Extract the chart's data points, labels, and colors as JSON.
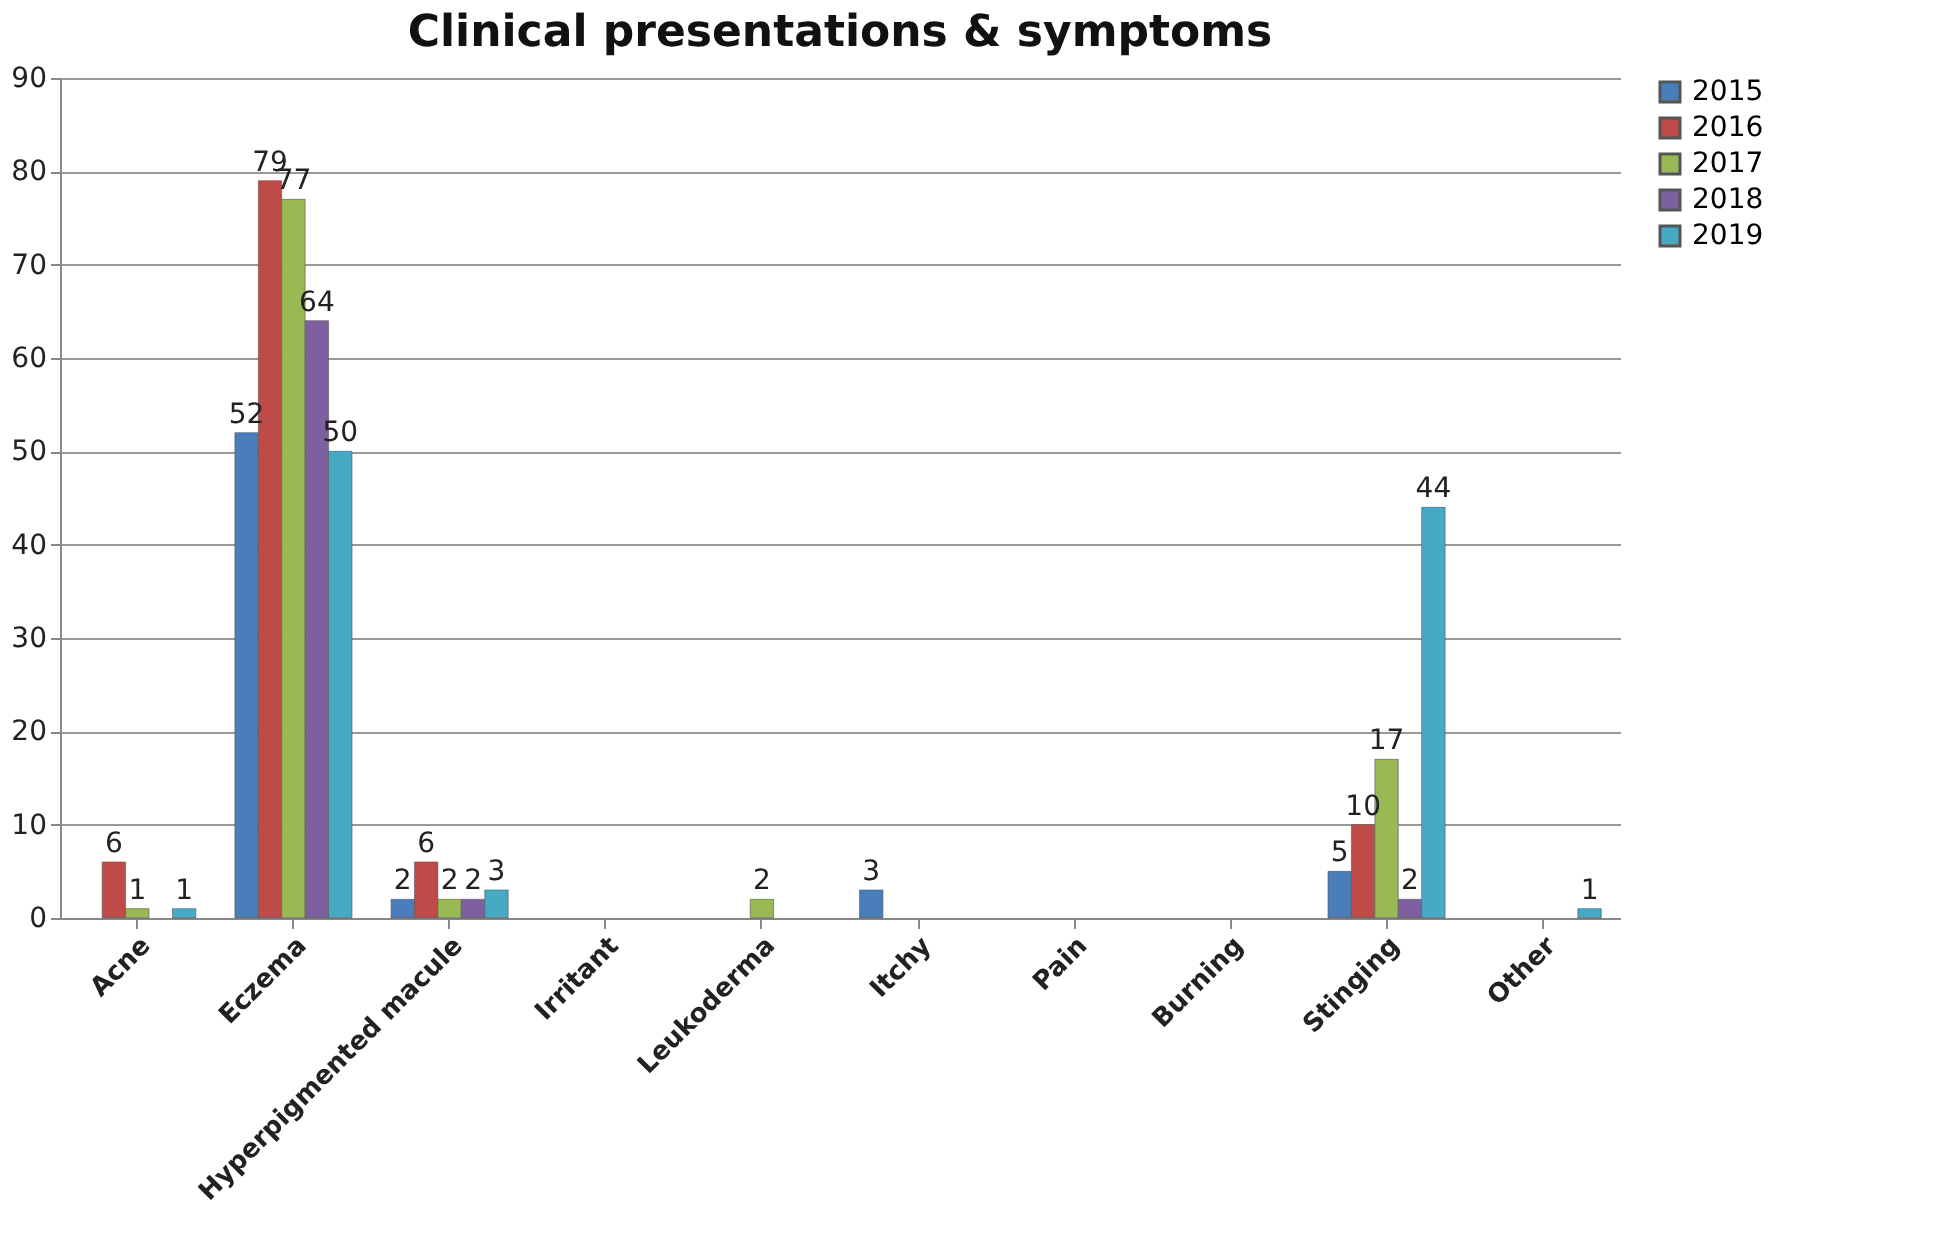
{
  "chart_data": {
    "type": "bar",
    "title": "Clinical presentations & symptoms",
    "categories": [
      "Acne",
      "Eczema",
      "Hyperpigmented macule",
      "Irritant",
      "Leukoderma",
      "Itchy",
      "Pain",
      "Burning",
      "Stinging",
      "Other"
    ],
    "series": [
      {
        "name": "2015",
        "color": "#4a7ebb",
        "values": [
          null,
          52,
          2,
          null,
          null,
          3,
          null,
          null,
          5,
          null
        ]
      },
      {
        "name": "2016",
        "color": "#be4b48",
        "values": [
          6,
          79,
          6,
          null,
          null,
          null,
          null,
          null,
          10,
          null
        ]
      },
      {
        "name": "2017",
        "color": "#98b954",
        "values": [
          1,
          77,
          2,
          null,
          2,
          null,
          null,
          null,
          17,
          null
        ]
      },
      {
        "name": "2018",
        "color": "#7d60a0",
        "values": [
          null,
          64,
          2,
          null,
          null,
          null,
          null,
          null,
          2,
          null
        ]
      },
      {
        "name": "2019",
        "color": "#46aac5",
        "values": [
          1,
          50,
          3,
          null,
          null,
          null,
          null,
          null,
          44,
          1
        ]
      }
    ],
    "ylim": [
      0,
      90
    ],
    "yticks": [
      0,
      10,
      20,
      30,
      40,
      50,
      60,
      70,
      80,
      90
    ],
    "grid": "y",
    "legend": "right",
    "data_labels": true
  }
}
